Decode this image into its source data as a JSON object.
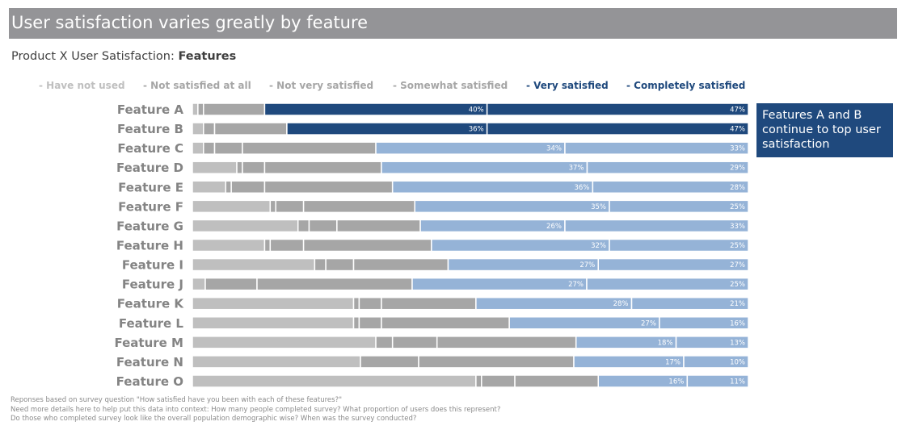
{
  "banner": {
    "title": "User satisfaction varies greatly by feature"
  },
  "subtitle": {
    "prefix": "Product X User Satisfaction: ",
    "emphasis": "Features"
  },
  "callout": {
    "text": "Features A and B continue to top user satisfaction"
  },
  "footnotes": [
    "Reponses based on survey question \"How satisfied have you been with each of these features?\"",
    "Need more details here to help put this data into context: How many people completed survey? What proportion of users does this represent?",
    "Do those who completed survey look like the overall population demographic wise? When was the survey conducted?"
  ],
  "colors": {
    "have_not_used": "#bfbfbf",
    "not_satisfied": "#a6a6a6",
    "not_very": "#a6a6a6",
    "somewhat": "#a6a6a6",
    "very_highlight": "#1f497d",
    "very": "#95b3d7",
    "completely_highlight": "#1f497d",
    "completely": "#95b3d7",
    "legend_have_not_used": "#bfbfbf",
    "legend_grey": "#a6a6a6",
    "legend_blue": "#1f497d"
  },
  "chart_data": {
    "type": "bar",
    "orientation": "horizontal",
    "stacked": "100%",
    "title": "User satisfaction varies greatly by feature",
    "subtitle": "Product X User Satisfaction: Features",
    "legend_position": "top",
    "categories": [
      "Feature A",
      "Feature B",
      "Feature C",
      "Feature D",
      "Feature E",
      "Feature F",
      "Feature G",
      "Feature H",
      "Feature I",
      "Feature J",
      "Feature K",
      "Feature L",
      "Feature M",
      "Feature N",
      "Feature O"
    ],
    "highlight_categories": [
      "Feature A",
      "Feature B"
    ],
    "series": [
      {
        "name": "- Have not used",
        "key": "have_not_used",
        "values": [
          1,
          2,
          2,
          8,
          6,
          14,
          19,
          13,
          22,
          2,
          29,
          29,
          33,
          26,
          51
        ],
        "labels": []
      },
      {
        "name": "- Not satisfied at all",
        "key": "not_satisfied",
        "values": [
          1,
          2,
          2,
          1,
          1,
          1,
          2,
          1,
          2,
          0,
          1,
          1,
          3,
          0,
          1
        ],
        "labels": []
      },
      {
        "name": "- Not very satisfied",
        "key": "not_very",
        "values": [
          11,
          13,
          5,
          4,
          6,
          5,
          5,
          6,
          5,
          8,
          4,
          4,
          8,
          9,
          6
        ],
        "labels": []
      },
      {
        "name": "- Somewhat satisfied",
        "key": "somewhat",
        "values": [
          0,
          0,
          24,
          21,
          23,
          20,
          15,
          23,
          17,
          24,
          17,
          23,
          25,
          24,
          15
        ],
        "labels": []
      },
      {
        "name": "- Very satisfied",
        "key": "very",
        "values": [
          40,
          36,
          34,
          37,
          36,
          35,
          26,
          32,
          27,
          27,
          28,
          27,
          18,
          17,
          16
        ],
        "labels": [
          "40%",
          "36%",
          "34%",
          "37%",
          "36%",
          "35%",
          "26%",
          "32%",
          "27%",
          "27%",
          "28%",
          "27%",
          "18%",
          "17%",
          "16%"
        ]
      },
      {
        "name": "- Completely satisfied",
        "key": "completely",
        "values": [
          47,
          47,
          33,
          29,
          28,
          25,
          33,
          25,
          27,
          25,
          21,
          16,
          13,
          10,
          11
        ],
        "labels": [
          "47%",
          "47%",
          "33%",
          "29%",
          "28%",
          "25%",
          "33%",
          "25%",
          "27%",
          "25%",
          "21%",
          "16%",
          "13%",
          "10%",
          "11%"
        ]
      }
    ],
    "xlim": [
      0,
      100
    ],
    "xlabel": "",
    "ylabel": "",
    "grid": false
  }
}
